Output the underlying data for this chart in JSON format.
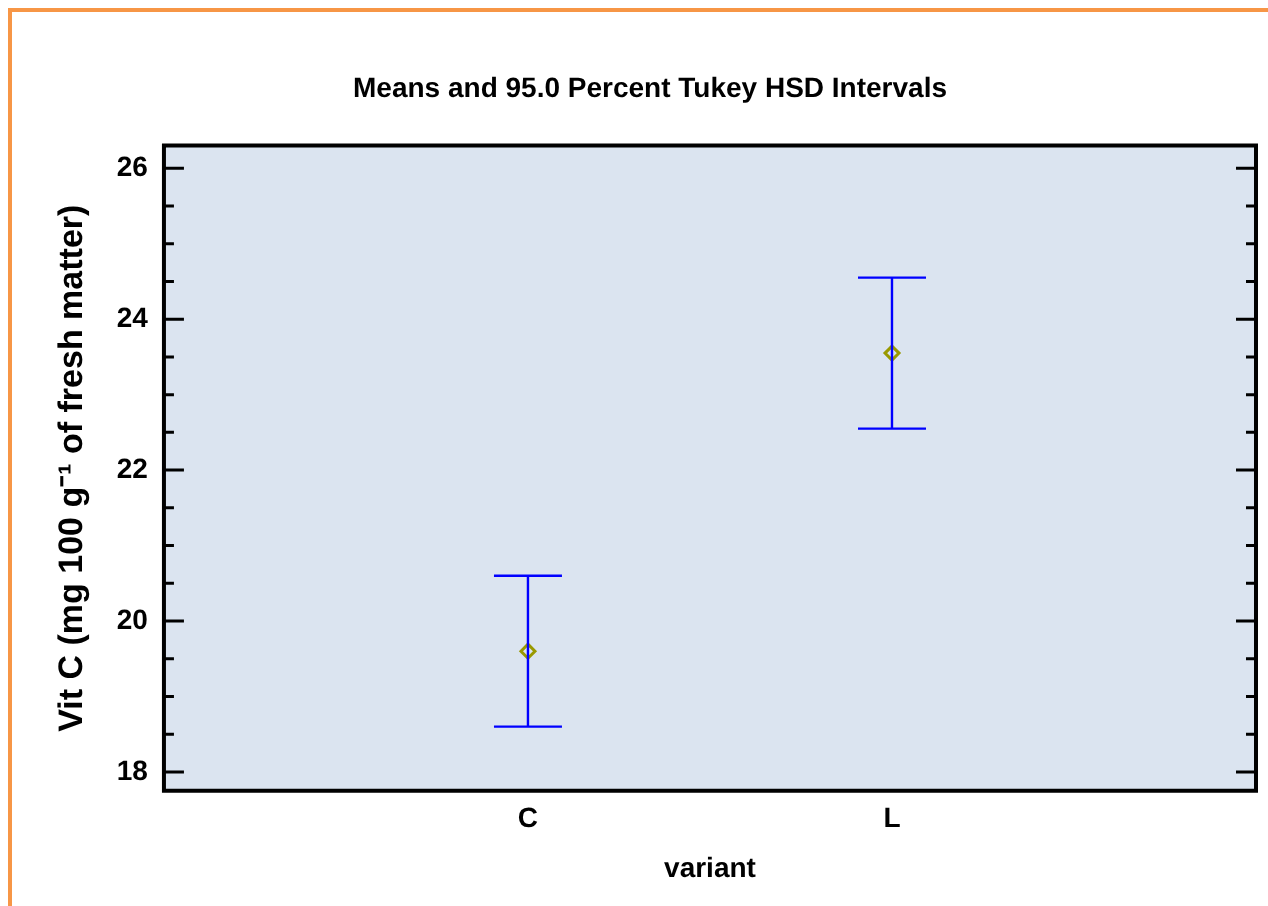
{
  "chart_data": {
    "type": "scatter",
    "title": "Means and 95.0 Percent Tukey HSD Intervals",
    "xlabel": "variant",
    "ylabel": "Vit C (mg 100 g⁻¹ of fresh matter)",
    "categories": [
      "C",
      "L"
    ],
    "values": [
      19.6,
      23.55
    ],
    "errors": [
      1.0,
      1.0
    ],
    "color": "#999900",
    "marker": "diamond",
    "ylim": [
      17.75,
      26.3
    ],
    "yticks": [
      18,
      {
        "value": 18.5,
        "label": null
      },
      {
        "value": 19,
        "label": null
      },
      {
        "value": 19.5,
        "label": null
      },
      20,
      {
        "value": 20.5,
        "label": null
      },
      {
        "value": 21,
        "label": null
      },
      {
        "value": 21.5,
        "label": null
      },
      22,
      {
        "value": 22.5,
        "label": null
      },
      {
        "value": 23,
        "label": null
      },
      {
        "value": 23.5,
        "label": null
      },
      24,
      {
        "value": 24.5,
        "label": null
      },
      {
        "value": 25,
        "label": null
      },
      {
        "value": 25.5,
        "label": null
      },
      26
    ]
  }
}
